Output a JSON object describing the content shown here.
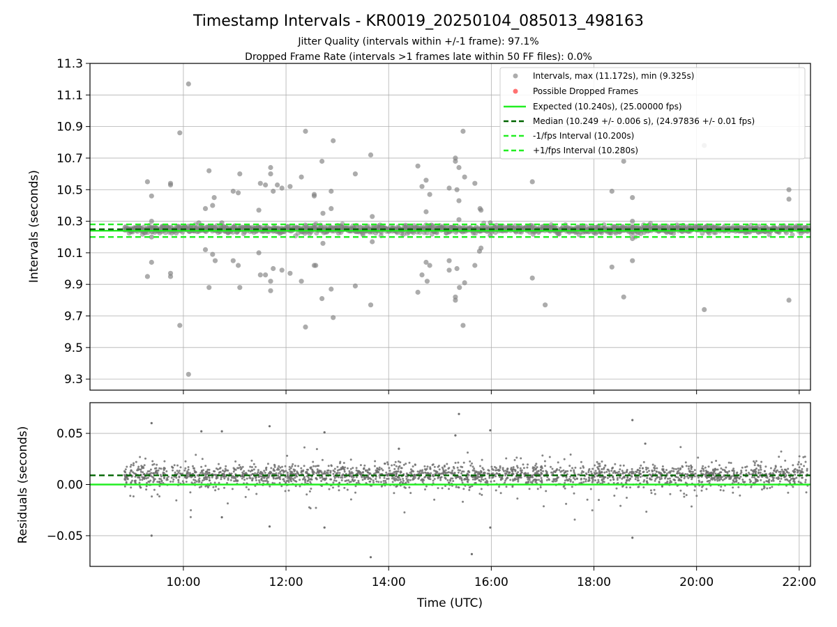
{
  "chart_data": {
    "title": "Timestamp Intervals - KR0019_20250104_085013_498163",
    "subtitle_1": "Jitter Quality (intervals within +/-1 frame): 97.1%",
    "subtitle_2": "Dropped Frame Rate (intervals >1 frames late within 50 FF files): 0.0%",
    "xlabel": "Time (UTC)",
    "x_ticks": [
      "10:00",
      "12:00",
      "14:00",
      "16:00",
      "18:00",
      "20:00",
      "22:00"
    ],
    "x_range_hours": [
      8.18,
      22.22
    ],
    "panels": [
      {
        "id": "intervals",
        "type": "scatter",
        "ylabel": "Intervals (seconds)",
        "ylim": [
          9.23,
          11.3
        ],
        "y_ticks": [
          "9.3",
          "9.5",
          "9.7",
          "9.9",
          "10.1",
          "10.3",
          "10.5",
          "10.7",
          "10.9",
          "11.1",
          "11.3"
        ],
        "grid": true,
        "legend_position": "top-right",
        "legend": [
          "Intervals, max (11.172s), min (9.325s)",
          "Possible Dropped Frames",
          "Expected (10.240s), (25.00000 fps)",
          "Median (10.249 +/- 0.006 s), (24.97836 +/- 0.01 fps)",
          "-1/fps Interval (10.200s)",
          "+1/fps Interval (10.280s)"
        ],
        "reference_lines": {
          "expected": 10.24,
          "median": 10.249,
          "minus_1_fps": 10.2,
          "plus_1_fps": 10.28
        },
        "colors": {
          "points": "#808080",
          "dropped": "#ff4d4d",
          "expected": "#22ee22",
          "median": "#006400",
          "fps_bounds": "#22ee22"
        },
        "outliers": [
          [
            9.3,
            10.55
          ],
          [
            9.3,
            9.95
          ],
          [
            9.38,
            10.46
          ],
          [
            9.38,
            10.3
          ],
          [
            9.38,
            10.2
          ],
          [
            9.38,
            10.04
          ],
          [
            9.75,
            10.54
          ],
          [
            9.75,
            10.53
          ],
          [
            9.75,
            9.97
          ],
          [
            9.75,
            9.95
          ],
          [
            9.93,
            10.86
          ],
          [
            9.93,
            9.64
          ],
          [
            10.1,
            11.17
          ],
          [
            10.1,
            9.33
          ],
          [
            10.3,
            10.29
          ],
          [
            10.43,
            10.38
          ],
          [
            10.43,
            10.12
          ],
          [
            10.5,
            10.62
          ],
          [
            10.5,
            9.88
          ],
          [
            10.57,
            10.4
          ],
          [
            10.57,
            10.09
          ],
          [
            10.6,
            10.45
          ],
          [
            10.62,
            10.05
          ],
          [
            10.75,
            10.29
          ],
          [
            10.97,
            10.49
          ],
          [
            10.97,
            10.05
          ],
          [
            11.07,
            10.48
          ],
          [
            11.07,
            10.02
          ],
          [
            11.1,
            10.6
          ],
          [
            11.1,
            9.88
          ],
          [
            11.47,
            10.37
          ],
          [
            11.47,
            10.1
          ],
          [
            11.5,
            10.54
          ],
          [
            11.5,
            9.96
          ],
          [
            11.6,
            10.53
          ],
          [
            11.6,
            9.96
          ],
          [
            11.7,
            10.64
          ],
          [
            11.7,
            10.6
          ],
          [
            11.7,
            9.92
          ],
          [
            11.7,
            9.86
          ],
          [
            11.75,
            10.49
          ],
          [
            11.75,
            10.0
          ],
          [
            11.83,
            10.53
          ],
          [
            11.92,
            10.51
          ],
          [
            11.92,
            9.99
          ],
          [
            12.08,
            10.52
          ],
          [
            12.08,
            9.97
          ],
          [
            12.3,
            10.58
          ],
          [
            12.3,
            9.92
          ],
          [
            12.38,
            10.87
          ],
          [
            12.38,
            9.63
          ],
          [
            12.55,
            10.47
          ],
          [
            12.55,
            10.46
          ],
          [
            12.55,
            10.02
          ],
          [
            12.58,
            10.02
          ],
          [
            12.7,
            10.68
          ],
          [
            12.7,
            9.81
          ],
          [
            12.72,
            10.35
          ],
          [
            12.72,
            10.16
          ],
          [
            12.88,
            10.49
          ],
          [
            12.88,
            10.38
          ],
          [
            12.88,
            9.87
          ],
          [
            12.92,
            10.81
          ],
          [
            12.92,
            9.69
          ],
          [
            13.35,
            10.6
          ],
          [
            13.35,
            9.89
          ],
          [
            13.65,
            10.72
          ],
          [
            13.65,
            9.77
          ],
          [
            13.68,
            10.33
          ],
          [
            13.68,
            10.17
          ],
          [
            14.57,
            10.65
          ],
          [
            14.57,
            9.85
          ],
          [
            14.65,
            10.52
          ],
          [
            14.65,
            9.96
          ],
          [
            14.73,
            10.56
          ],
          [
            14.73,
            10.36
          ],
          [
            14.73,
            10.04
          ],
          [
            14.75,
            9.92
          ],
          [
            14.8,
            10.47
          ],
          [
            14.8,
            10.02
          ],
          [
            15.18,
            10.51
          ],
          [
            15.18,
            10.05
          ],
          [
            15.18,
            9.99
          ],
          [
            15.3,
            10.7
          ],
          [
            15.3,
            10.68
          ],
          [
            15.3,
            9.82
          ],
          [
            15.3,
            9.8
          ],
          [
            15.33,
            10.5
          ],
          [
            15.33,
            10.0
          ],
          [
            15.37,
            10.64
          ],
          [
            15.37,
            10.43
          ],
          [
            15.37,
            10.31
          ],
          [
            15.38,
            9.88
          ],
          [
            15.45,
            10.87
          ],
          [
            15.45,
            9.64
          ],
          [
            15.48,
            10.58
          ],
          [
            15.48,
            9.91
          ],
          [
            15.68,
            10.54
          ],
          [
            15.68,
            10.02
          ],
          [
            15.78,
            10.38
          ],
          [
            15.8,
            10.37
          ],
          [
            15.8,
            10.13
          ],
          [
            15.77,
            10.11
          ],
          [
            15.98,
            10.29
          ],
          [
            15.98,
            10.21
          ],
          [
            16.8,
            10.55
          ],
          [
            16.8,
            9.94
          ],
          [
            17.05,
            9.77
          ],
          [
            18.35,
            10.49
          ],
          [
            18.35,
            10.01
          ],
          [
            18.58,
            10.68
          ],
          [
            18.58,
            9.82
          ],
          [
            18.75,
            10.45
          ],
          [
            18.75,
            10.3
          ],
          [
            18.75,
            10.19
          ],
          [
            18.75,
            10.05
          ],
          [
            20.15,
            10.78
          ],
          [
            20.15,
            9.74
          ],
          [
            21.8,
            10.5
          ],
          [
            21.8,
            10.44
          ],
          [
            21.8,
            9.8
          ]
        ]
      },
      {
        "id": "residuals",
        "type": "scatter",
        "ylabel": "Residuals (seconds)",
        "ylim": [
          -0.08,
          0.08
        ],
        "y_ticks": [
          "0.05",
          "0.00",
          "−0.05"
        ],
        "y_tick_values": [
          0.05,
          0.0,
          -0.05
        ],
        "grid": true,
        "reference_lines": {
          "zero": 0.0,
          "median_offset": 0.009
        },
        "colors": {
          "points": "#6e6e6e",
          "zero": "#22ee22",
          "median": "#006400"
        },
        "outliers": [
          [
            9.38,
            0.06
          ],
          [
            9.38,
            -0.05
          ],
          [
            10.35,
            0.052
          ],
          [
            10.75,
            0.052
          ],
          [
            10.75,
            -0.032
          ],
          [
            11.68,
            0.057
          ],
          [
            11.68,
            -0.041
          ],
          [
            12.75,
            0.051
          ],
          [
            12.75,
            -0.042
          ],
          [
            13.65,
            -0.071
          ],
          [
            14.2,
            0.035
          ],
          [
            15.3,
            0.048
          ],
          [
            15.37,
            0.069
          ],
          [
            15.62,
            -0.068
          ],
          [
            15.98,
            0.053
          ],
          [
            15.98,
            -0.042
          ],
          [
            18.75,
            0.063
          ],
          [
            18.75,
            -0.052
          ],
          [
            19.0,
            0.04
          ]
        ]
      }
    ]
  }
}
